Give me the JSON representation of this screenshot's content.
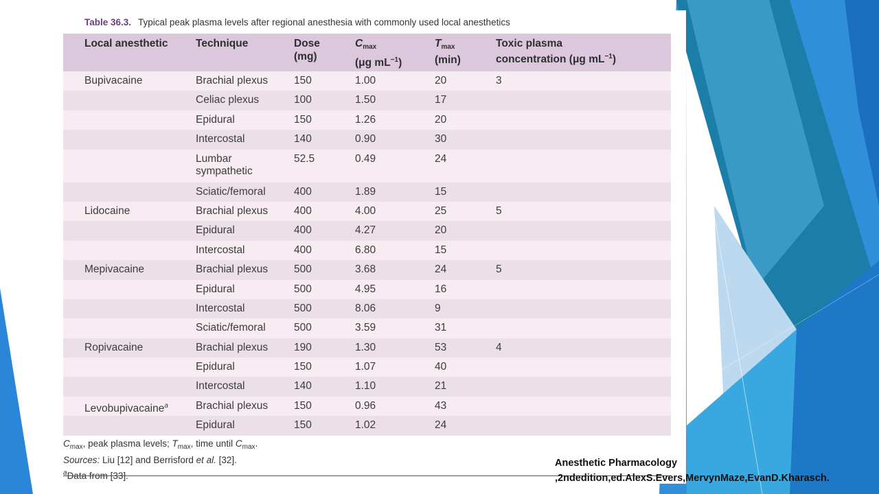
{
  "caption": {
    "label": "Table 36.3.",
    "text": "Typical peak plasma levels after regional anesthesia with commonly used local anesthetics"
  },
  "headers": {
    "col1": "Local anesthetic",
    "col2": "Technique",
    "col3_line1": "Dose",
    "col3_line2": "(mg)",
    "col4_letter": "C",
    "col4_sub": "max",
    "col4_line2": "(μg mL",
    "col4_exp": "−1",
    "col4_close": ")",
    "col5_letter": "T",
    "col5_sub": "max",
    "col5_line2": "(min)",
    "col6_line1": "Toxic plasma",
    "col6_line2": "concentration (μg mL",
    "col6_exp": "−1",
    "col6_close": ")"
  },
  "rows": [
    {
      "anesthetic": "Bupivacaine",
      "technique": "Brachial plexus",
      "dose": "150",
      "cmax": "1.00",
      "tmax": "20",
      "toxic": "3"
    },
    {
      "anesthetic": "",
      "technique": "Celiac plexus",
      "dose": "100",
      "cmax": "1.50",
      "tmax": "17",
      "toxic": ""
    },
    {
      "anesthetic": "",
      "technique": "Epidural",
      "dose": "150",
      "cmax": "1.26",
      "tmax": "20",
      "toxic": ""
    },
    {
      "anesthetic": "",
      "technique": "Intercostal",
      "dose": "140",
      "cmax": "0.90",
      "tmax": "30",
      "toxic": ""
    },
    {
      "anesthetic": "",
      "technique_line1": "Lumbar",
      "technique_line2": "sympathetic",
      "dose": "52.5",
      "cmax": "0.49",
      "tmax": "24",
      "toxic": ""
    },
    {
      "anesthetic": "",
      "technique": "Sciatic/femoral",
      "dose": "400",
      "cmax": "1.89",
      "tmax": "15",
      "toxic": ""
    },
    {
      "anesthetic": "Lidocaine",
      "technique": "Brachial plexus",
      "dose": "400",
      "cmax": "4.00",
      "tmax": "25",
      "toxic": "5"
    },
    {
      "anesthetic": "",
      "technique": "Epidural",
      "dose": "400",
      "cmax": "4.27",
      "tmax": "20",
      "toxic": ""
    },
    {
      "anesthetic": "",
      "technique": "Intercostal",
      "dose": "400",
      "cmax": "6.80",
      "tmax": "15",
      "toxic": ""
    },
    {
      "anesthetic": "Mepivacaine",
      "technique": "Brachial plexus",
      "dose": "500",
      "cmax": "3.68",
      "tmax": "24",
      "toxic": "5"
    },
    {
      "anesthetic": "",
      "technique": "Epidural",
      "dose": "500",
      "cmax": "4.95",
      "tmax": "16",
      "toxic": ""
    },
    {
      "anesthetic": "",
      "technique": "Intercostal",
      "dose": "500",
      "cmax": "8.06",
      "tmax": "9",
      "toxic": ""
    },
    {
      "anesthetic": "",
      "technique": "Sciatic/femoral",
      "dose": "500",
      "cmax": "3.59",
      "tmax": "31",
      "toxic": ""
    },
    {
      "anesthetic": "Ropivacaine",
      "technique": "Brachial plexus",
      "dose": "190",
      "cmax": "1.30",
      "tmax": "53",
      "toxic": "4"
    },
    {
      "anesthetic": "",
      "technique": "Epidural",
      "dose": "150",
      "cmax": "1.07",
      "tmax": "40",
      "toxic": ""
    },
    {
      "anesthetic": "",
      "technique": "Intercostal",
      "dose": "140",
      "cmax": "1.10",
      "tmax": "21",
      "toxic": ""
    },
    {
      "anesthetic": "Levobupivacaine",
      "anesthetic_sup": "a",
      "technique": "Brachial plexus",
      "dose": "150",
      "cmax": "0.96",
      "tmax": "43",
      "toxic": ""
    },
    {
      "anesthetic": "",
      "technique": "Epidural",
      "dose": "150",
      "cmax": "1.02",
      "tmax": "24",
      "toxic": ""
    }
  ],
  "footnotes": {
    "line1_c": "C",
    "line1_c_sub": "max",
    "line1_text": ", peak plasma levels; ",
    "line1_t": "T",
    "line1_t_sub": "max",
    "line1_text2": ", time until ",
    "line1_c2": "C",
    "line1_c2_sub": "max",
    "line1_end": ".",
    "line2_label": "Sources:",
    "line2_text": " Liu [12] and Berrisford ",
    "line2_etal": "et al.",
    "line2_end": " [32].",
    "line3_sup": "a",
    "line3_text": "Data from [33]."
  },
  "citation": {
    "line1": "Anesthetic Pharmacology",
    "line2": ",2ndedition,ed.AlexS.Evers,MervynMaze,EvanD.Kharasch."
  },
  "colors": {
    "header_bg": "#dcc8dc",
    "row_light": "#f6ecf1",
    "row_dark": "#ece0e8",
    "accent_purple": "#6a3d78",
    "theme_blue": "#1f7fd0"
  }
}
